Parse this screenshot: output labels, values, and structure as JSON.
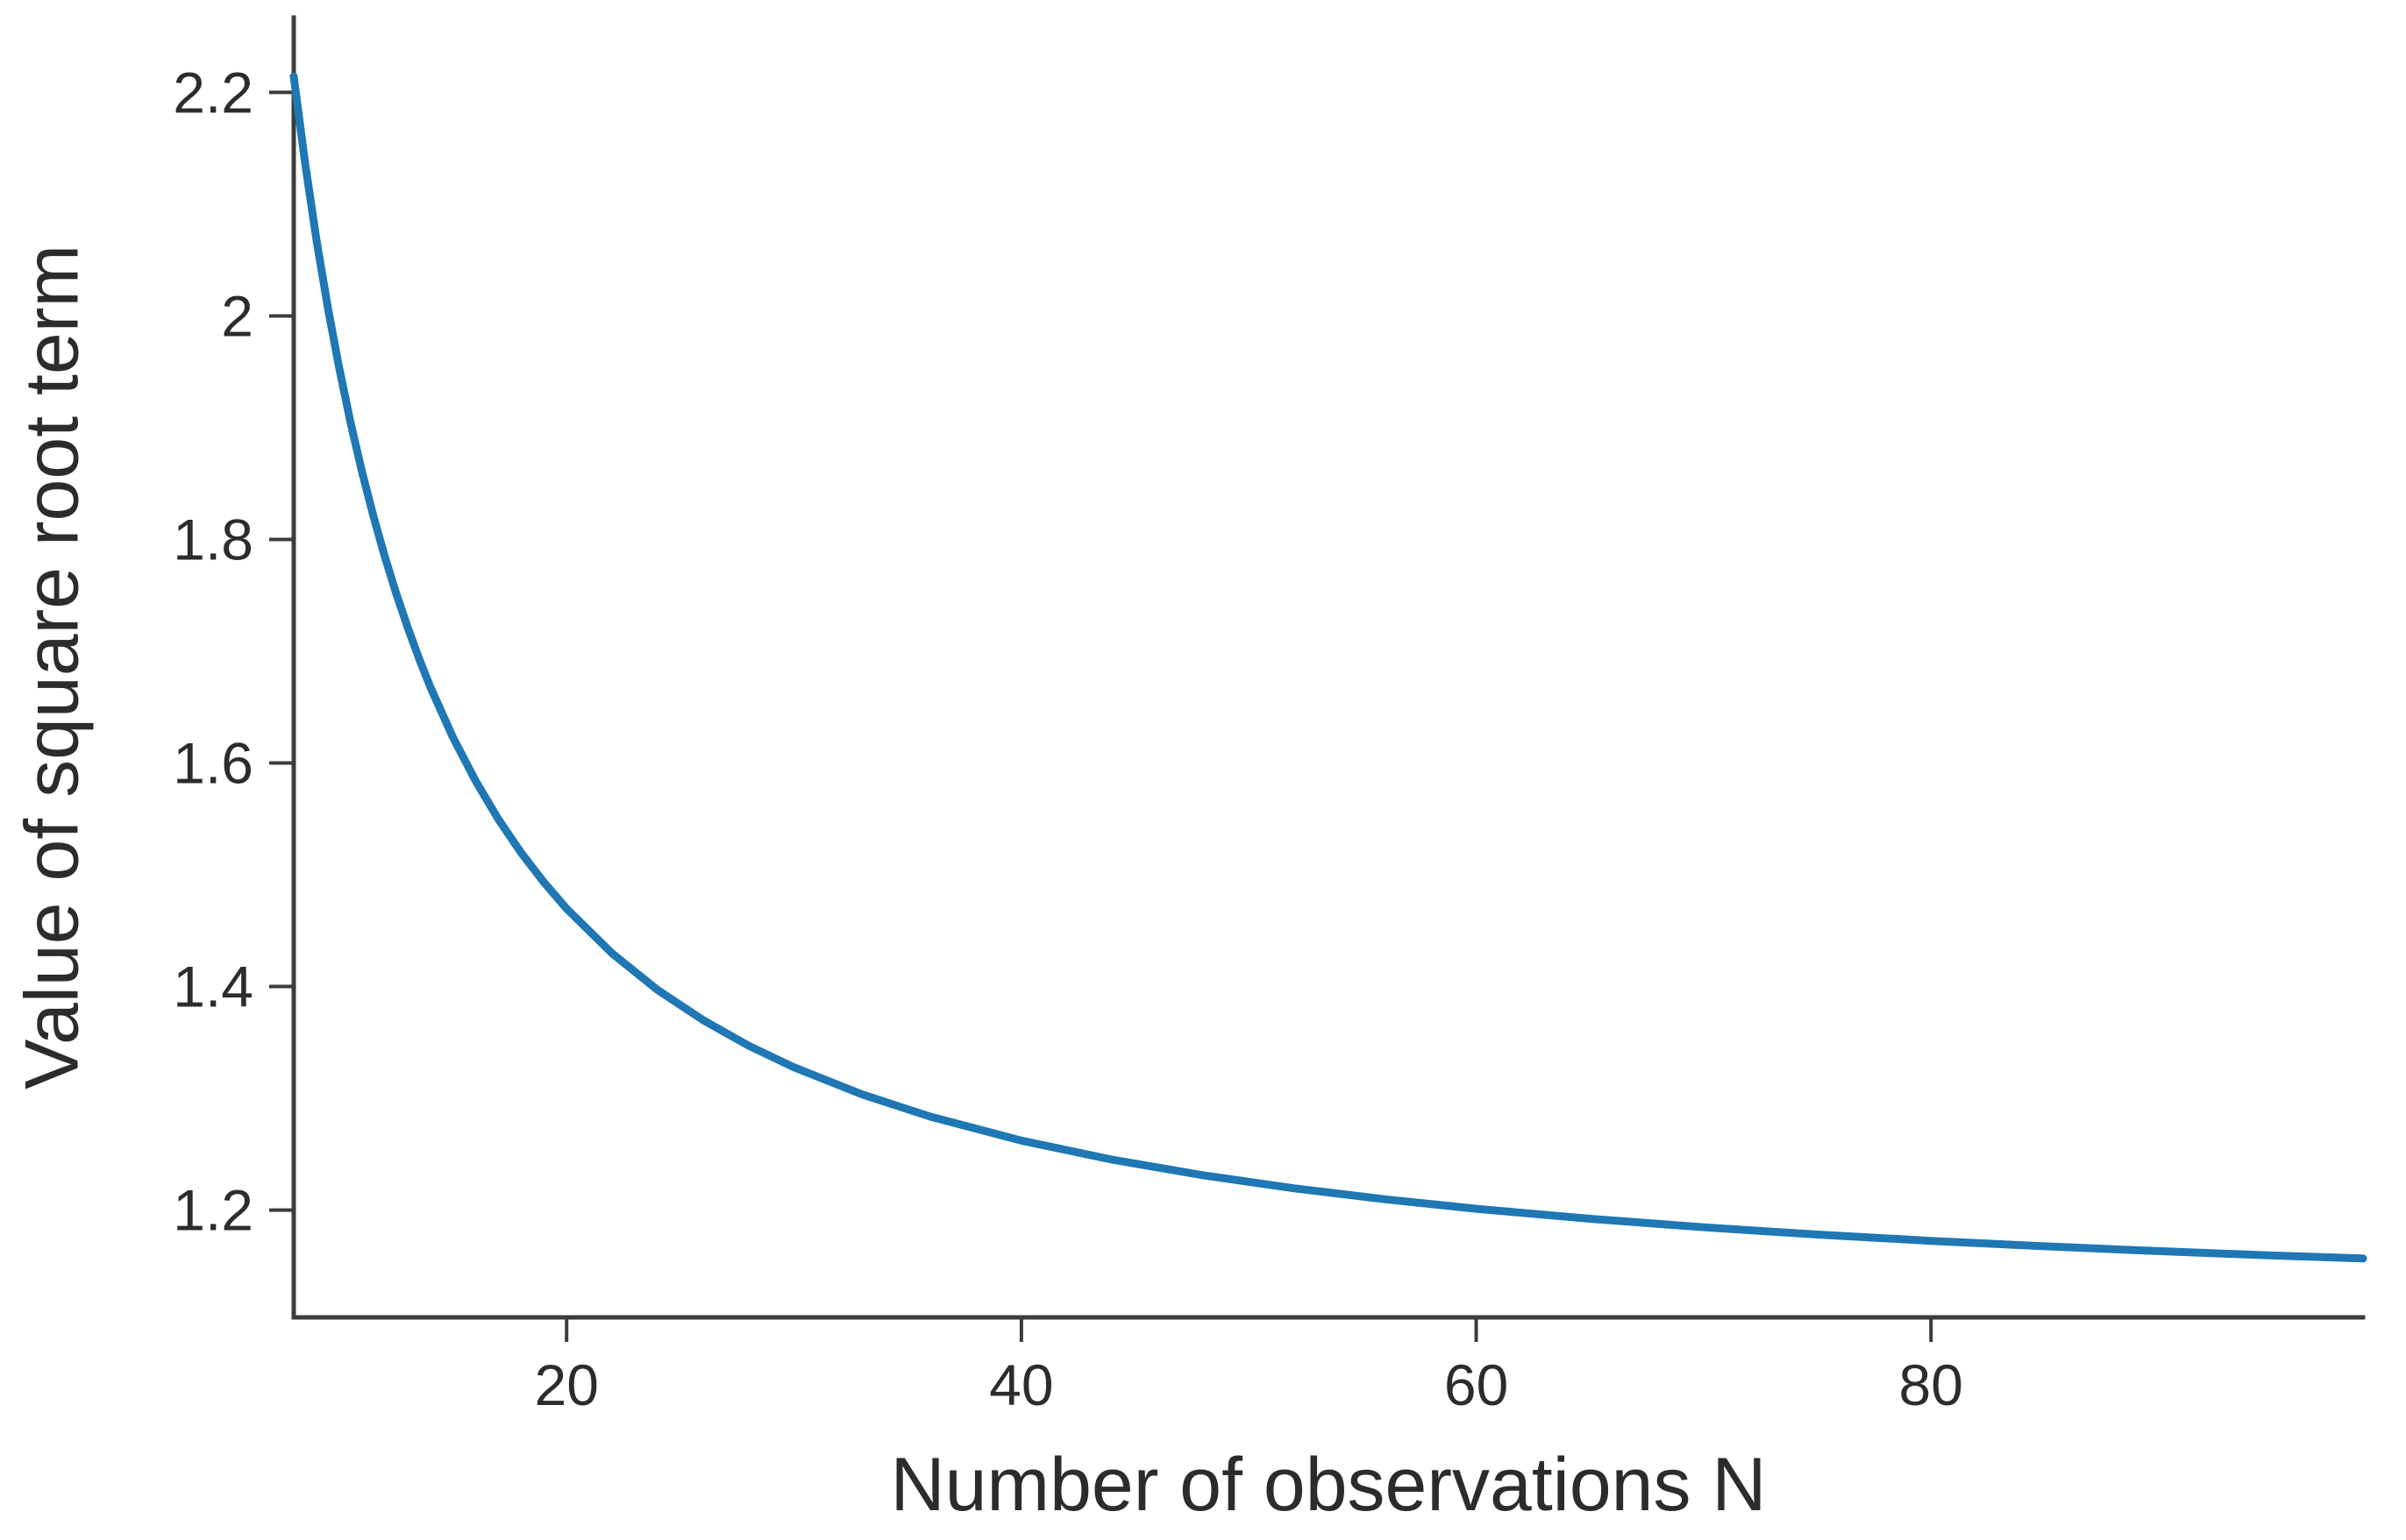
{
  "chart_data": {
    "type": "line",
    "title": "",
    "xlabel": "Number of observations N",
    "ylabel": "Value of square root term",
    "x": [
      8,
      8.5,
      9,
      9.5,
      10,
      10.5,
      11,
      11.5,
      12,
      12.5,
      13,
      13.5,
      14,
      15,
      16,
      17,
      18,
      19,
      20,
      22,
      24,
      26,
      28,
      30,
      33,
      36,
      40,
      44,
      48,
      52,
      56,
      60,
      65,
      70,
      75,
      80,
      85,
      90,
      95,
      99
    ],
    "y": [
      2.2143,
      2.1366,
      2.0681,
      2.0074,
      1.9532,
      1.9046,
      1.8607,
      1.8211,
      1.785,
      1.752,
      1.7219,
      1.6941,
      1.6683,
      1.6231,
      1.5839,
      1.5497,
      1.5197,
      1.4933,
      1.4697,
      1.4297,
      1.397,
      1.37,
      1.3471,
      1.3277,
      1.3034,
      1.2836,
      1.2622,
      1.2451,
      1.2311,
      1.2194,
      1.2096,
      1.2012,
      1.1922,
      1.1846,
      1.1781,
      1.1725,
      1.1676,
      1.1633,
      1.1594,
      1.1567
    ],
    "xlim": [
      8,
      99
    ],
    "ylim": [
      1.104,
      2.267
    ],
    "xticks": {
      "values": [
        20,
        40,
        60,
        80
      ],
      "labels": [
        "20",
        "40",
        "60",
        "80"
      ]
    },
    "yticks": {
      "values": [
        1.2,
        1.4,
        1.6,
        1.8,
        2.0,
        2.2
      ],
      "labels": [
        "1.2",
        "1.4",
        "1.6",
        "1.8",
        "2",
        "2.2"
      ]
    },
    "grid": false,
    "legend": null,
    "spines": {
      "top": false,
      "right": false,
      "bottom": true,
      "left": true
    },
    "line_color": "#1f77b4",
    "axis_color": "#3c3c3c",
    "text_color": "#2c2c2c",
    "background": "#ffffff"
  }
}
